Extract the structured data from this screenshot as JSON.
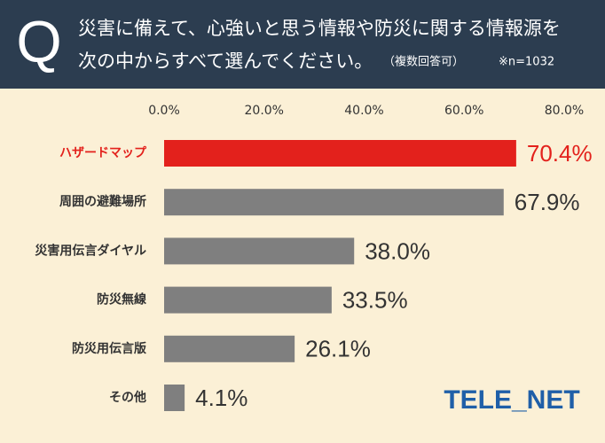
{
  "chart_data": {
    "type": "bar",
    "orientation": "horizontal",
    "q_mark": "Q",
    "title_lines": [
      "災害に備えて、心強いと思う情報や防災に関する情報源を",
      "次の中からすべて選んでください。"
    ],
    "annotation": "（複数回答可）",
    "sample_note": "※n=1032",
    "logo": "TELE_NET",
    "categories": [
      "ハザードマップ",
      "周囲の避難場所",
      "災害用伝言ダイヤル",
      "防災無線",
      "防災用伝言版",
      "その他"
    ],
    "values": [
      70.4,
      67.9,
      38.0,
      33.5,
      26.1,
      4.1
    ],
    "value_labels": [
      "70.4%",
      "67.9%",
      "38.0%",
      "33.5%",
      "26.1%",
      "4.1%"
    ],
    "colors": [
      "#e3211c",
      "#7f7f7f",
      "#7f7f7f",
      "#7f7f7f",
      "#7f7f7f",
      "#7f7f7f"
    ],
    "label_colors": [
      "#e3211c",
      "#333333",
      "#333333",
      "#333333",
      "#333333",
      "#333333"
    ],
    "xlim": [
      0,
      80
    ],
    "xticks": [
      {
        "value": 0,
        "label": "0.0%"
      },
      {
        "value": 20,
        "label": "20.0%"
      },
      {
        "value": 40,
        "label": "40.0%"
      },
      {
        "value": 60,
        "label": "60.0%"
      },
      {
        "value": 80,
        "label": "80.0%"
      }
    ],
    "grid": false
  }
}
